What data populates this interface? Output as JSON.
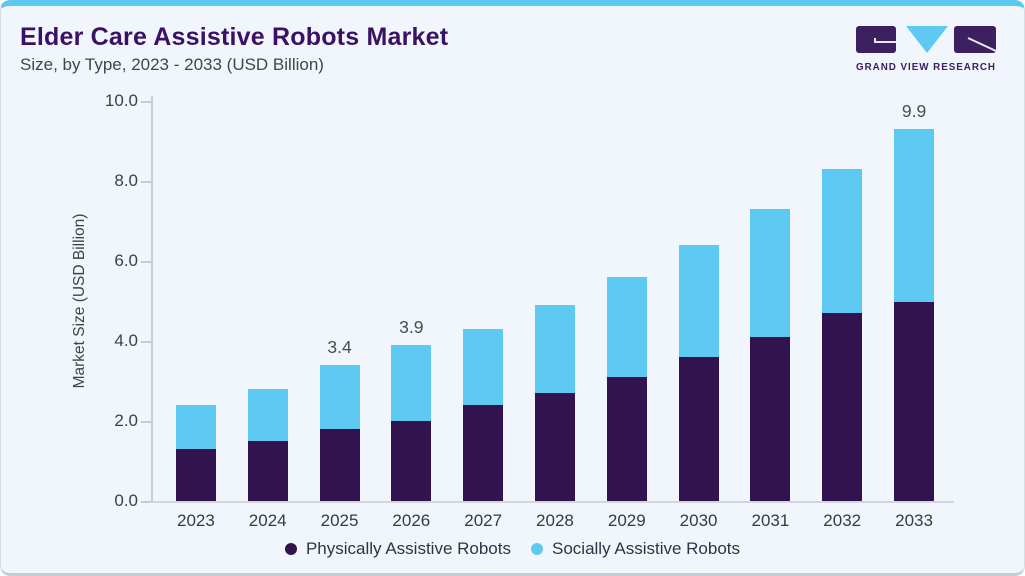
{
  "header": {
    "title": "Elder Care Assistive Robots Market",
    "subtitle": "Size, by Type, 2023 - 2033 (USD Billion)"
  },
  "logo": {
    "text": "GRAND VIEW RESEARCH"
  },
  "colors": {
    "accent_cyan": "#5bc8f0",
    "bar_purple": "#331250",
    "bar_cyan": "#5ecaf4",
    "title_purple": "#3b1166",
    "logo_purple": "#3c2060",
    "background": "#f0f6fb"
  },
  "chart_data": {
    "type": "bar",
    "stacked": true,
    "title": "Elder Care Assistive Robots Market Size, by Type, 2023 - 2033 (USD Billion)",
    "ylabel": "Market Size (USD Billion)",
    "xlabel": "",
    "ylim": [
      0,
      10
    ],
    "yticks": [
      10,
      8,
      6,
      4,
      2,
      0
    ],
    "ytick_labels": [
      "10.0",
      "8.0",
      "6.0",
      "4.0",
      "2.0",
      "0.0"
    ],
    "grid": false,
    "legend_position": "bottom",
    "categories": [
      "2023",
      "2024",
      "2025",
      "2026",
      "2027",
      "2028",
      "2029",
      "2030",
      "2031",
      "2032",
      "2033"
    ],
    "series": [
      {
        "name": "Physically Assistive Robots",
        "color": "#331250",
        "values": [
          1.3,
          1.5,
          1.8,
          2.0,
          2.4,
          2.7,
          3.1,
          3.6,
          4.1,
          4.7,
          5.3
        ]
      },
      {
        "name": "Socially Assistive Robots",
        "color": "#5ecaf4",
        "values": [
          1.1,
          1.3,
          1.6,
          1.9,
          1.9,
          2.2,
          2.5,
          2.8,
          3.2,
          3.6,
          4.6
        ]
      }
    ],
    "totals": [
      2.4,
      2.8,
      3.4,
      3.9,
      4.3,
      4.9,
      5.6,
      6.4,
      7.3,
      8.3,
      9.9
    ],
    "bar_value_labels": [
      "",
      "",
      "3.4",
      "3.9",
      "",
      "",
      "",
      "",
      "",
      "",
      "9.9"
    ]
  }
}
